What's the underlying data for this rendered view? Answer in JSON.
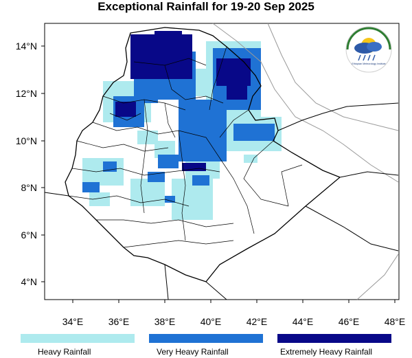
{
  "title": "Exceptional Rainfall for 19-20 Sep 2025",
  "axes": {
    "x_ticks": [
      "34°E",
      "36°E",
      "38°E",
      "40°E",
      "42°E",
      "44°E",
      "46°E",
      "48°E"
    ],
    "y_ticks": [
      "14°N",
      "12°N",
      "10°N",
      "8°N",
      "6°N",
      "4°N"
    ]
  },
  "logo": {
    "name": "ethiopian-meteorology-institute-logo",
    "text": "Ethiopian Meteorology Institute"
  },
  "colors": {
    "heavy": "#aeeaee",
    "very_heavy": "#1f72d4",
    "extreme": "#080888",
    "border": "#000000",
    "coast": "#999999"
  },
  "legend": [
    {
      "key": "heavy",
      "label": "Heavy Rainfall",
      "color": "#aeeaee"
    },
    {
      "key": "very_heavy",
      "label": "Very Heavy Rainfall",
      "color": "#1f72d4"
    },
    {
      "key": "extreme",
      "label": "Extremely Heavy Rainfall",
      "color": "#080888"
    }
  ]
}
